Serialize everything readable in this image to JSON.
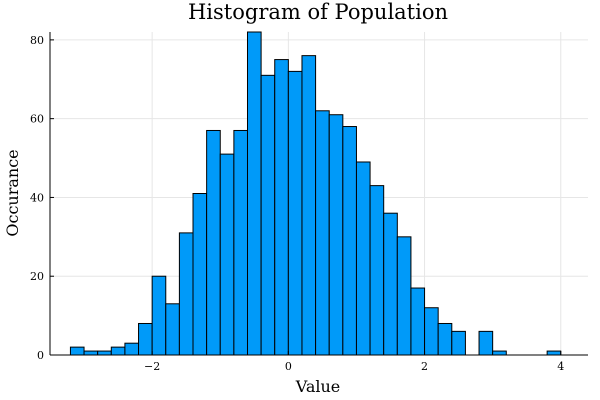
{
  "chart_data": {
    "type": "bar",
    "title": "Histogram of Population",
    "xlabel": "Value",
    "ylabel": "Occurance",
    "xlim": [
      -3.5,
      4.4
    ],
    "ylim": [
      0,
      82
    ],
    "xticks": [
      -2,
      0,
      2,
      4
    ],
    "yticks": [
      0,
      20,
      40,
      60,
      80
    ],
    "xtick_labels": [
      "−2",
      "0",
      "2",
      "4"
    ],
    "ytick_labels": [
      "0",
      "20",
      "40",
      "60",
      "80"
    ],
    "grid": true,
    "legend": "none",
    "bar_color": "#009af9",
    "bin_edges": [
      -3.2,
      -3.0,
      -2.8,
      -2.6,
      -2.4,
      -2.2,
      -2.0,
      -1.8,
      -1.6,
      -1.4,
      -1.2,
      -1.0,
      -0.8,
      -0.6,
      -0.4,
      -0.2,
      0.0,
      0.2,
      0.4,
      0.6,
      0.8,
      1.0,
      1.2,
      1.4,
      1.6,
      1.8,
      2.0,
      2.2,
      2.4,
      2.6,
      2.8,
      3.0,
      3.2,
      3.4,
      3.6,
      3.8,
      4.0
    ],
    "values": [
      2,
      1,
      1,
      2,
      3,
      8,
      20,
      13,
      31,
      41,
      57,
      51,
      57,
      82,
      71,
      75,
      72,
      76,
      62,
      61,
      58,
      49,
      43,
      36,
      30,
      17,
      12,
      8,
      6,
      0,
      6,
      1,
      0,
      0,
      0,
      1
    ]
  }
}
